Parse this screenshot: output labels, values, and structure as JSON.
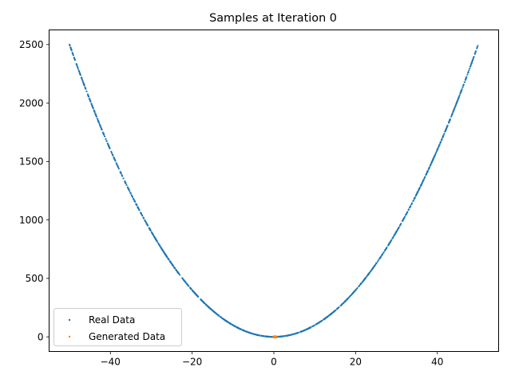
{
  "chart_data": {
    "type": "scatter",
    "title": "Samples at Iteration 0",
    "xlabel": "",
    "ylabel": "",
    "xlim": [
      -55,
      55
    ],
    "ylim": [
      -125,
      2625
    ],
    "xticks": [
      -40,
      -20,
      0,
      20,
      40
    ],
    "xtick_labels": [
      "−40",
      "−20",
      "0",
      "20",
      "40"
    ],
    "yticks": [
      0,
      500,
      1000,
      1500,
      2000,
      2500
    ],
    "ytick_labels": [
      "0",
      "500",
      "1000",
      "1500",
      "2000",
      "2500"
    ],
    "grid": false,
    "legend": {
      "placement": "lower-left"
    },
    "series": [
      {
        "name": "Real Data",
        "color": "#1f77b4",
        "relation": "y = x^2",
        "x_range": [
          -50,
          50
        ]
      },
      {
        "name": "Generated Data",
        "color": "#ff7f0e",
        "x_range": [
          -0.1,
          0.7
        ],
        "y_range": [
          -5,
          5
        ]
      }
    ]
  }
}
